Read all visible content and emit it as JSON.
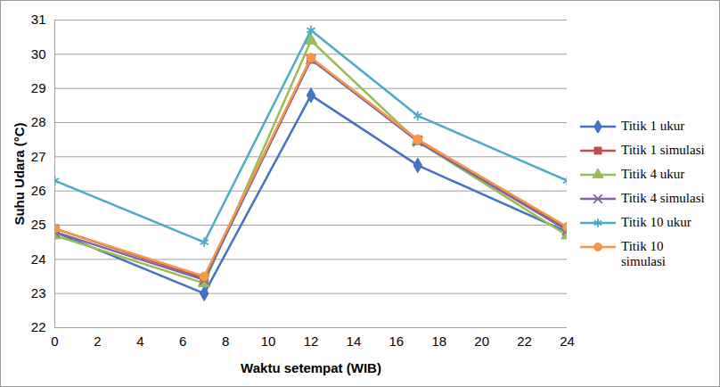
{
  "chart_data": {
    "type": "line",
    "x_label": "Waktu setempat (WIB)",
    "y_label": "Suhu Udara (°C)",
    "x": [
      0,
      7,
      12,
      17,
      24
    ],
    "xlim": [
      0,
      24
    ],
    "xticks": [
      0,
      2,
      4,
      6,
      8,
      10,
      12,
      14,
      16,
      18,
      20,
      22,
      24
    ],
    "ylim": [
      22,
      31
    ],
    "yticks": [
      22,
      23,
      24,
      25,
      26,
      27,
      28,
      29,
      30,
      31
    ],
    "grid": true,
    "legend": "right",
    "series": [
      {
        "name": "Titik 1 ukur",
        "color": "#4472c4",
        "marker": "diamond",
        "values": [
          24.8,
          23.0,
          28.8,
          26.75,
          24.8
        ]
      },
      {
        "name": "Titik 1 simulasi",
        "color": "#c0504d",
        "marker": "square",
        "values": [
          24.9,
          23.45,
          29.85,
          27.5,
          24.9
        ]
      },
      {
        "name": "Titik 4 ukur",
        "color": "#9bbb59",
        "marker": "triangle",
        "values": [
          24.7,
          23.3,
          30.4,
          27.45,
          24.7
        ]
      },
      {
        "name": "Titik 4 simulasi",
        "color": "#8064a2",
        "marker": "x",
        "values": [
          24.8,
          23.4,
          29.85,
          27.45,
          24.85
        ]
      },
      {
        "name": "Titik 10 ukur",
        "color": "#4bacc6",
        "marker": "asterisk",
        "values": [
          26.3,
          24.5,
          30.7,
          28.2,
          26.3
        ]
      },
      {
        "name": "Titik 10 simulasi",
        "color": "#f79646",
        "marker": "circle",
        "values": [
          24.9,
          23.5,
          29.9,
          27.5,
          24.95
        ]
      }
    ]
  }
}
